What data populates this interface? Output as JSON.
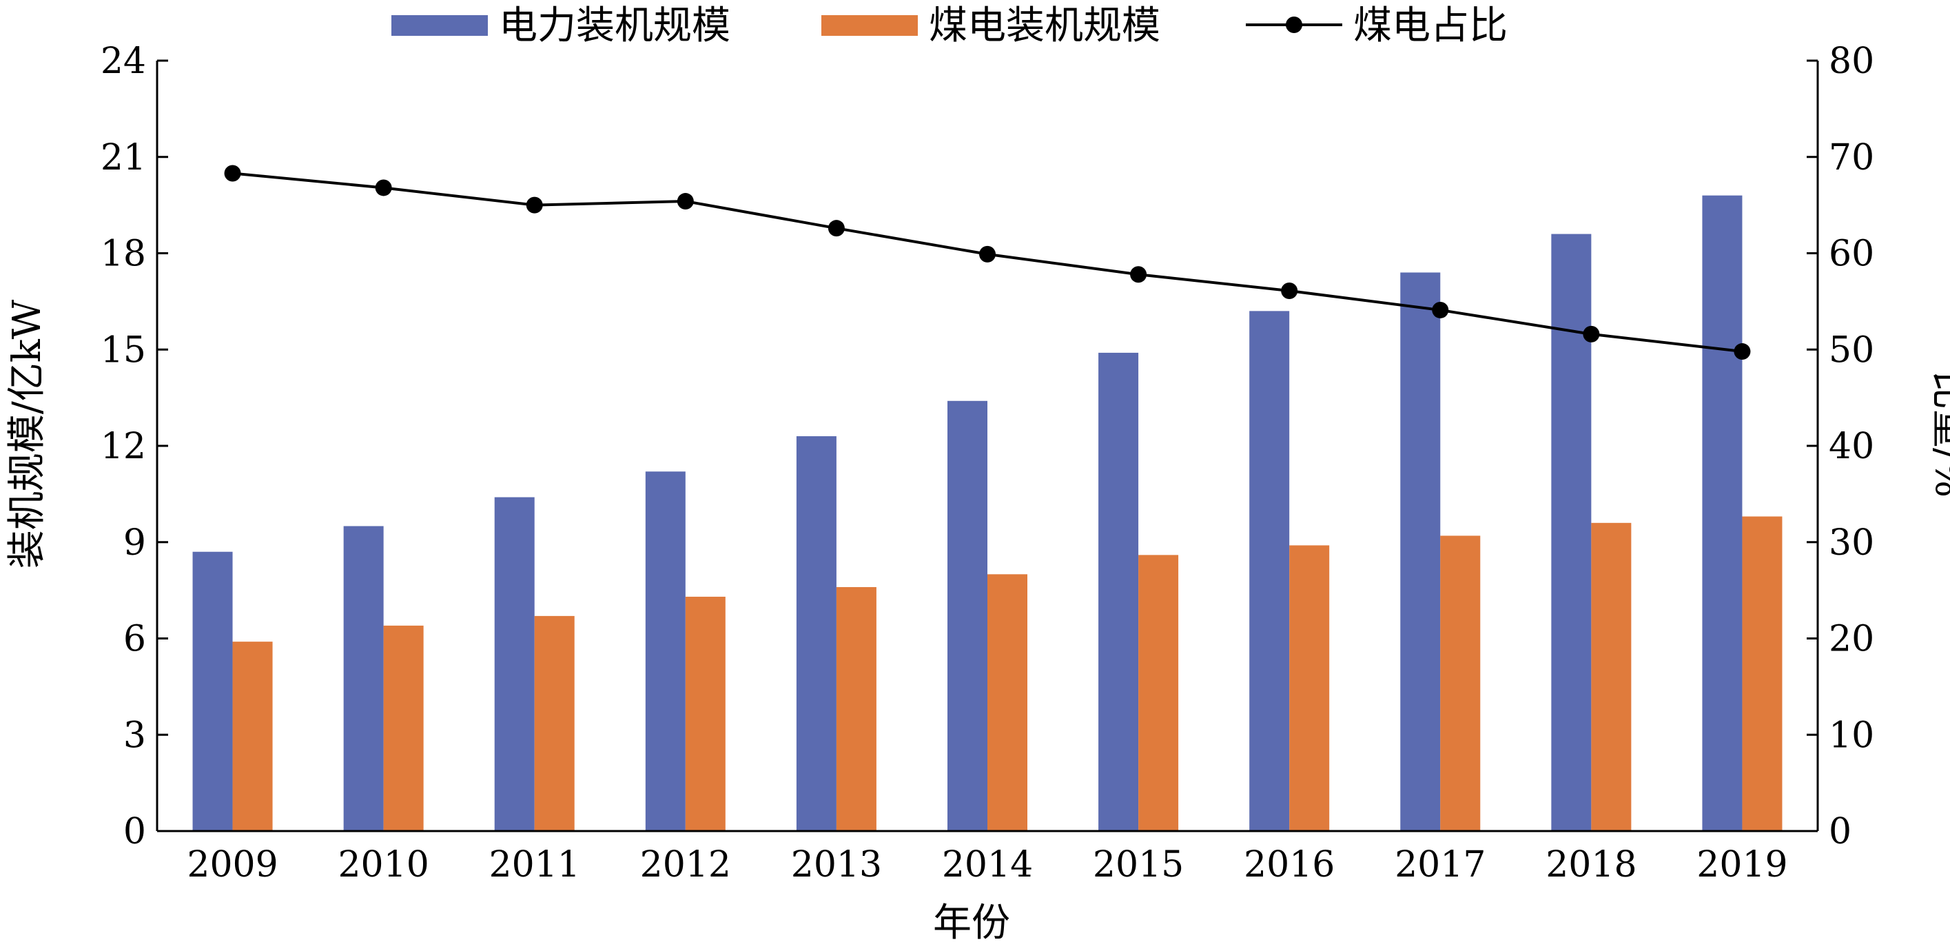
{
  "chart_data": {
    "type": "bar",
    "categories": [
      "2009",
      "2010",
      "2011",
      "2012",
      "2013",
      "2014",
      "2015",
      "2016",
      "2017",
      "2018",
      "2019"
    ],
    "series": [
      {
        "name": "电力装机规模",
        "kind": "bar",
        "axis": "left",
        "color": "#5b6bb0",
        "values": [
          8.7,
          9.5,
          10.4,
          11.2,
          12.3,
          13.4,
          14.9,
          16.2,
          17.4,
          18.6,
          19.8
        ]
      },
      {
        "name": "煤电装机规模",
        "kind": "bar",
        "axis": "left",
        "color": "#e07b3c",
        "values": [
          5.9,
          6.4,
          6.7,
          7.3,
          7.6,
          8.0,
          8.6,
          8.9,
          9.2,
          9.6,
          9.8
        ]
      },
      {
        "name": "煤电占比",
        "kind": "line",
        "axis": "right",
        "color": "#000000",
        "values": [
          68.3,
          66.8,
          65.0,
          65.4,
          62.6,
          59.9,
          57.8,
          56.1,
          54.1,
          51.6,
          49.8
        ]
      }
    ],
    "xlabel": "年份",
    "ylabel": "装机规模/亿kW",
    "y2label": "比重/%",
    "ylim": [
      0,
      24
    ],
    "y2lim": [
      0,
      80
    ],
    "yticks": [
      "0",
      "3",
      "6",
      "9",
      "12",
      "15",
      "18",
      "21",
      "24"
    ],
    "y2ticks": [
      "0",
      "10",
      "20",
      "30",
      "40",
      "50",
      "60",
      "70",
      "80"
    ],
    "legend_position": "top-center",
    "grid": false
  }
}
